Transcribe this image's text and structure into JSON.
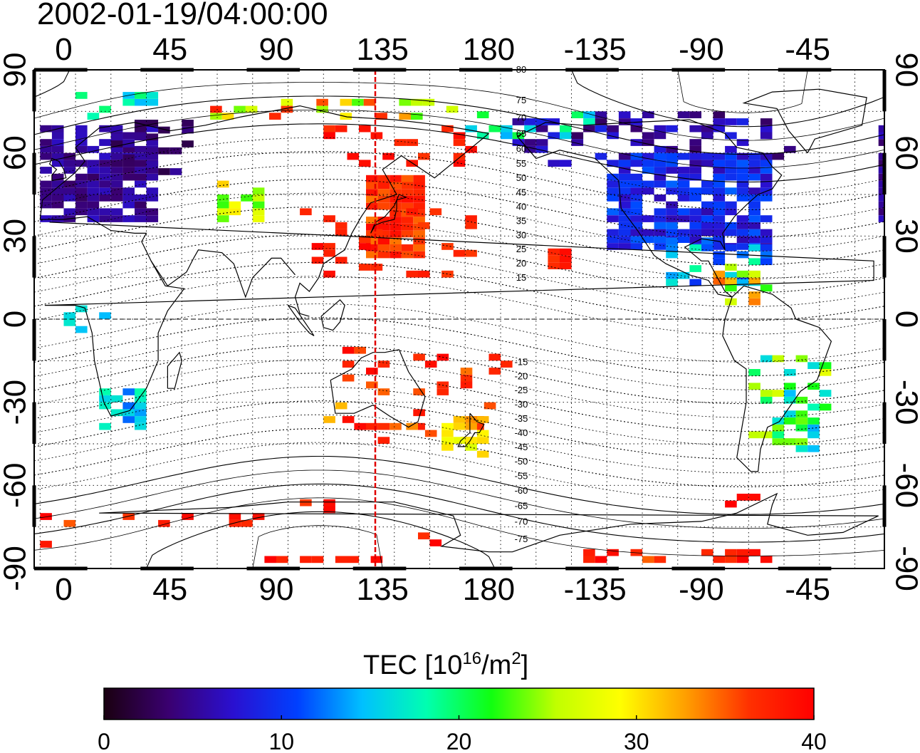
{
  "title": "2002-01-19/04:00:00",
  "map": {
    "top_lon_labels": [
      "0",
      "45",
      "90",
      "135",
      "180",
      "-135",
      "-90",
      "-45"
    ],
    "bottom_lon_labels": [
      "0",
      "45",
      "90",
      "135",
      "180",
      "-135",
      "-90",
      "-45"
    ],
    "left_lat_labels": [
      "90",
      "60",
      "30",
      "0",
      "-30",
      "-60",
      "-90"
    ],
    "right_lat_labels": [
      "90",
      "60",
      "30",
      "0",
      "-30",
      "-60",
      "-90"
    ],
    "magnetic_lat_labels_north": [
      "80",
      "75",
      "70",
      "65",
      "60",
      "55",
      "50",
      "45",
      "40",
      "35",
      "30",
      "25",
      "20",
      "15"
    ],
    "magnetic_lat_labels_south": [
      "-15",
      "-20",
      "-25",
      "-30",
      "-35",
      "-40",
      "-45",
      "-50",
      "-55",
      "-60",
      "-65",
      "-70",
      "-75"
    ],
    "lon_range": [
      -12.5,
      347.5
    ],
    "lat_range": [
      -90,
      90
    ],
    "grid": true
  },
  "colorbar": {
    "label_prefix": "TEC  [10",
    "label_exp": "16",
    "label_mid": "/m",
    "label_exp2": "2",
    "label_suffix": "]",
    "ticks": [
      "0",
      "10",
      "20",
      "30",
      "40"
    ],
    "range": [
      0,
      40
    ]
  },
  "colors": {
    "high_tec": "#ff1010",
    "sunlit_meridian": "#e00000",
    "gradient": [
      "#1a0010",
      "#3a0070",
      "#2a10d0",
      "#0040ff",
      "#00c0ff",
      "#00ffb0",
      "#10ff10",
      "#c0ff00",
      "#ffff00",
      "#ffa000",
      "#ff3000",
      "#ff0000"
    ]
  }
}
